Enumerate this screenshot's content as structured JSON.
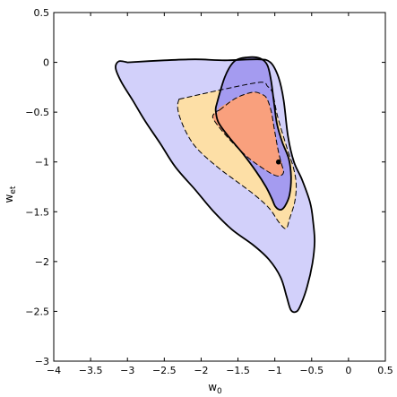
{
  "chart_data": {
    "type": "contour",
    "title": "",
    "xlabel": "w",
    "xlabel_sub": "0",
    "ylabel": "w",
    "ylabel_sub": "et",
    "xlim": [
      -4,
      0.5
    ],
    "ylim": [
      -3,
      0.5
    ],
    "xticks": [
      -4,
      -3.5,
      -3,
      -2.5,
      -2,
      -1.5,
      -1,
      -0.5,
      0,
      0.5
    ],
    "xtick_labels": [
      "−4",
      "−3.5",
      "−3",
      "−2.5",
      "−2",
      "−1.5",
      "−1",
      "−0.5",
      "0",
      "0.5"
    ],
    "yticks": [
      0.5,
      0,
      -0.5,
      -1,
      -1.5,
      -2,
      -2.5,
      -3
    ],
    "ytick_labels": [
      "0.5",
      "0",
      "−0.5",
      "−1",
      "−1.5",
      "−2",
      "−2.5",
      "−3"
    ],
    "grid": false,
    "colors": {
      "outer_purple": "#d2d0fa",
      "inner_purple": "#a49bf0",
      "outer_orange": "#fddfa6",
      "inner_orange": "#f9a07d",
      "line": "#000000"
    },
    "series": [
      {
        "fill": "#d2d0fa",
        "style": "solid",
        "points": [
          [
            -3.0,
            0.0
          ],
          [
            -2.5,
            0.02
          ],
          [
            -2.08,
            0.03
          ],
          [
            -1.68,
            0.02
          ],
          [
            -1.23,
            0.03
          ],
          [
            -1.06,
            0.0
          ],
          [
            -0.95,
            -0.15
          ],
          [
            -0.88,
            -0.38
          ],
          [
            -0.82,
            -0.75
          ],
          [
            -0.74,
            -1.0
          ],
          [
            -0.63,
            -1.18
          ],
          [
            -0.52,
            -1.41
          ],
          [
            -0.48,
            -1.6
          ],
          [
            -0.46,
            -1.8
          ],
          [
            -0.49,
            -2.02
          ],
          [
            -0.56,
            -2.25
          ],
          [
            -0.64,
            -2.42
          ],
          [
            -0.7,
            -2.5
          ],
          [
            -0.78,
            -2.49
          ],
          [
            -0.84,
            -2.35
          ],
          [
            -0.92,
            -2.16
          ],
          [
            -1.08,
            -1.98
          ],
          [
            -1.3,
            -1.83
          ],
          [
            -1.58,
            -1.68
          ],
          [
            -1.84,
            -1.49
          ],
          [
            -2.08,
            -1.28
          ],
          [
            -2.35,
            -1.05
          ],
          [
            -2.55,
            -0.82
          ],
          [
            -2.76,
            -0.59
          ],
          [
            -2.93,
            -0.38
          ],
          [
            -3.08,
            -0.2
          ],
          [
            -3.16,
            -0.06
          ],
          [
            -3.12,
            0.01
          ],
          [
            -3.0,
            0.0
          ]
        ]
      },
      {
        "fill": "#fddfa6",
        "style": "dashed",
        "points": [
          [
            -2.3,
            -0.37
          ],
          [
            -2.0,
            -0.32
          ],
          [
            -1.63,
            -0.26
          ],
          [
            -1.19,
            -0.2
          ],
          [
            -1.1,
            -0.24
          ],
          [
            -1.03,
            -0.31
          ],
          [
            -0.96,
            -0.55
          ],
          [
            -0.83,
            -0.87
          ],
          [
            -0.75,
            -1.05
          ],
          [
            -0.71,
            -1.22
          ],
          [
            -0.73,
            -1.4
          ],
          [
            -0.8,
            -1.57
          ],
          [
            -0.85,
            -1.67
          ],
          [
            -0.95,
            -1.6
          ],
          [
            -1.07,
            -1.47
          ],
          [
            -1.26,
            -1.34
          ],
          [
            -1.51,
            -1.2
          ],
          [
            -1.78,
            -1.05
          ],
          [
            -2.05,
            -0.87
          ],
          [
            -2.19,
            -0.72
          ],
          [
            -2.29,
            -0.55
          ],
          [
            -2.32,
            -0.44
          ],
          [
            -2.3,
            -0.37
          ]
        ]
      },
      {
        "fill": "#f9a07d",
        "style": "dashed",
        "points": [
          [
            -1.75,
            -0.48
          ],
          [
            -1.53,
            -0.36
          ],
          [
            -1.3,
            -0.3
          ],
          [
            -1.18,
            -0.32
          ],
          [
            -1.11,
            -0.36
          ],
          [
            -1.05,
            -0.49
          ],
          [
            -1.0,
            -0.7
          ],
          [
            -0.95,
            -0.9
          ],
          [
            -0.91,
            -1.02
          ],
          [
            -0.88,
            -1.1
          ],
          [
            -0.93,
            -1.14
          ],
          [
            -1.01,
            -1.13
          ],
          [
            -1.15,
            -1.07
          ],
          [
            -1.34,
            -0.97
          ],
          [
            -1.53,
            -0.84
          ],
          [
            -1.69,
            -0.71
          ],
          [
            -1.84,
            -0.56
          ],
          [
            -1.8,
            -0.5
          ],
          [
            -1.75,
            -0.48
          ]
        ]
      },
      {
        "fill": "#a49bf0",
        "style": "solid",
        "points": [
          [
            -1.8,
            -0.45
          ],
          [
            -1.68,
            -0.15
          ],
          [
            -1.55,
            0.01
          ],
          [
            -1.37,
            0.05
          ],
          [
            -1.2,
            0.04
          ],
          [
            -1.1,
            -0.03
          ],
          [
            -1.05,
            -0.19
          ],
          [
            -1.01,
            -0.41
          ],
          [
            -0.97,
            -0.62
          ],
          [
            -0.9,
            -0.8
          ],
          [
            -0.81,
            -0.97
          ],
          [
            -0.78,
            -1.15
          ],
          [
            -0.8,
            -1.33
          ],
          [
            -0.86,
            -1.44
          ],
          [
            -0.92,
            -1.48
          ],
          [
            -0.99,
            -1.45
          ],
          [
            -1.04,
            -1.37
          ],
          [
            -1.12,
            -1.25
          ],
          [
            -1.25,
            -1.1
          ],
          [
            -1.43,
            -0.92
          ],
          [
            -1.6,
            -0.77
          ],
          [
            -1.76,
            -0.61
          ],
          [
            -1.8,
            -0.5
          ],
          [
            -1.8,
            -0.45
          ]
        ]
      }
    ],
    "overlay_regions": [
      {
        "fill": "#f9a07d",
        "points": [
          [
            -1.76,
            -0.46
          ],
          [
            -1.53,
            -0.36
          ],
          [
            -1.3,
            -0.3
          ],
          [
            -1.18,
            -0.32
          ],
          [
            -1.11,
            -0.36
          ],
          [
            -1.05,
            -0.49
          ],
          [
            -1.0,
            -0.7
          ],
          [
            -0.95,
            -0.9
          ],
          [
            -0.9,
            -1.02
          ],
          [
            -0.89,
            -1.1
          ],
          [
            -0.93,
            -1.14
          ],
          [
            -1.01,
            -1.13
          ],
          [
            -1.15,
            -1.07
          ],
          [
            -1.34,
            -0.97
          ],
          [
            -1.53,
            -0.84
          ],
          [
            -1.69,
            -0.71
          ],
          [
            -1.79,
            -0.57
          ],
          [
            -1.76,
            -0.46
          ]
        ]
      }
    ],
    "marker": {
      "x": -0.95,
      "y": -1.0
    }
  }
}
